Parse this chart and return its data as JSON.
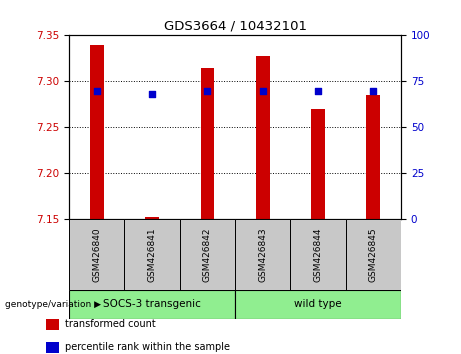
{
  "title": "GDS3664 / 10432101",
  "samples": [
    "GSM426840",
    "GSM426841",
    "GSM426842",
    "GSM426843",
    "GSM426844",
    "GSM426845"
  ],
  "transformed_counts": [
    7.34,
    7.153,
    7.315,
    7.328,
    7.27,
    7.285
  ],
  "percentile_ranks": [
    70,
    68,
    70,
    70,
    70,
    70
  ],
  "ylim_left": [
    7.15,
    7.35
  ],
  "ylim_right": [
    0,
    100
  ],
  "yticks_left": [
    7.15,
    7.2,
    7.25,
    7.3,
    7.35
  ],
  "yticks_right": [
    0,
    25,
    50,
    75,
    100
  ],
  "bar_bottom": 7.15,
  "bar_color": "#cc0000",
  "dot_color": "#0000cc",
  "bar_width": 0.25,
  "groups": [
    {
      "label": "SOCS-3 transgenic",
      "samples": [
        0,
        1,
        2
      ],
      "color": "#90ee90"
    },
    {
      "label": "wild type",
      "samples": [
        3,
        4,
        5
      ],
      "color": "#90ee90"
    }
  ],
  "group_label": "genotype/variation",
  "legend_items": [
    {
      "label": "transformed count",
      "color": "#cc0000"
    },
    {
      "label": "percentile rank within the sample",
      "color": "#0000cc"
    }
  ],
  "bg_color": "#ffffff",
  "plot_bg": "#ffffff",
  "gray_color": "#c8c8c8",
  "tick_color_left": "#cc0000",
  "tick_color_right": "#0000cc"
}
